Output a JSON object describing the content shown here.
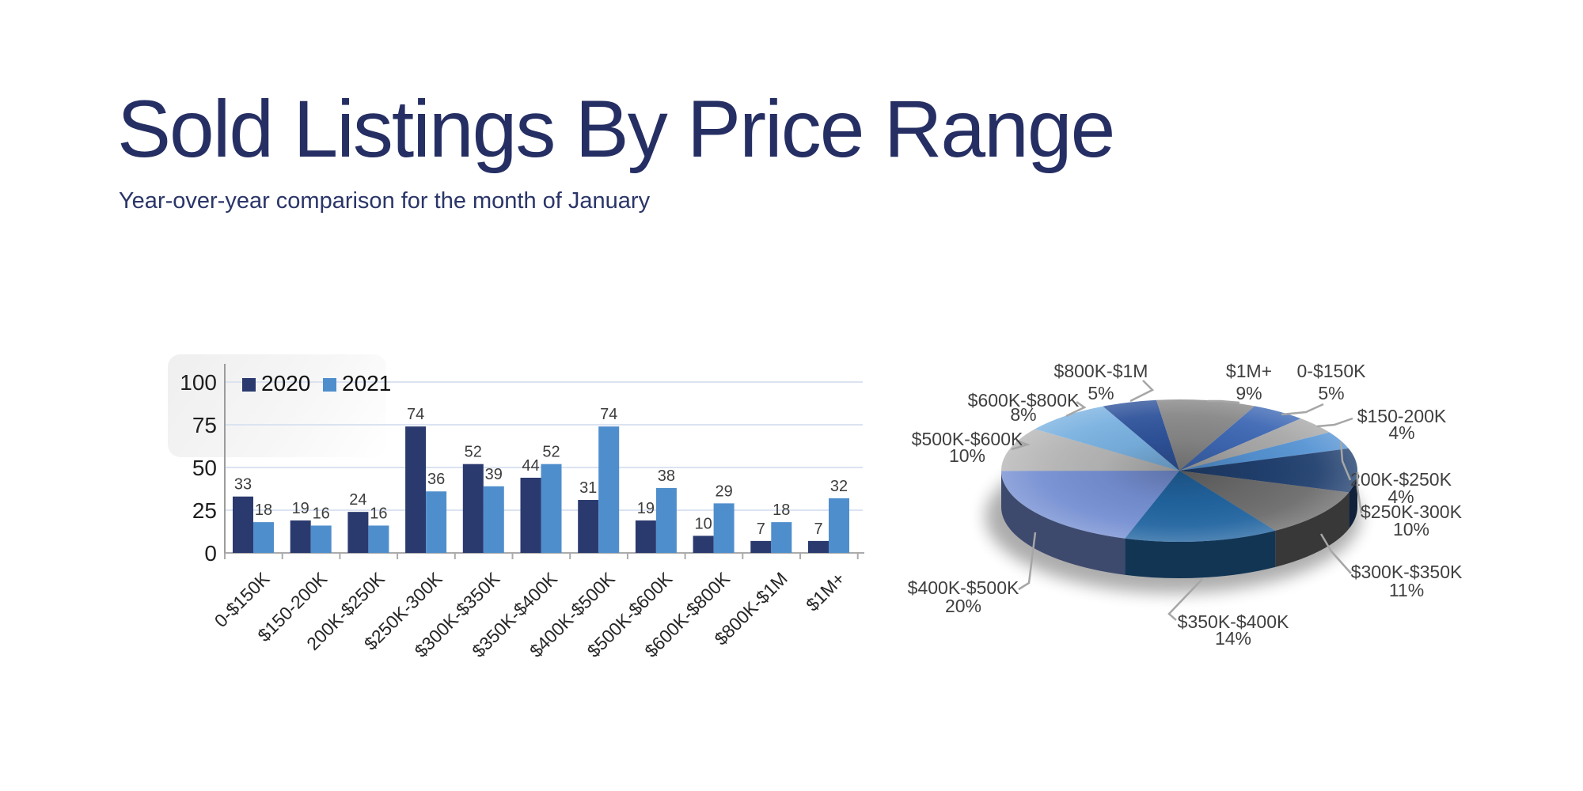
{
  "slide": {
    "title": "Sold Listings By Price Range",
    "subtitle": "Year-over-year comparison for the month of January"
  },
  "chart_data": [
    {
      "type": "bar",
      "title": "",
      "categories": [
        "0-$150K",
        "$150-200K",
        "200K-$250K",
        "$250K-300K",
        "$300K-$350K",
        "$350K-$400K",
        "$400K-$500K",
        "$500K-$600K",
        "$600K-$800K",
        "$800K-$1M",
        "$1M+"
      ],
      "series": [
        {
          "name": "2020",
          "color": "#2b3a6e",
          "values": [
            33,
            19,
            24,
            74,
            52,
            44,
            31,
            19,
            10,
            7,
            7
          ]
        },
        {
          "name": "2021",
          "color": "#4f8ecd",
          "values": [
            18,
            16,
            16,
            36,
            39,
            52,
            74,
            38,
            29,
            18,
            32
          ]
        }
      ],
      "ylim": [
        0,
        100
      ],
      "yticks": [
        0,
        25,
        50,
        75,
        100
      ],
      "grid": true,
      "legend_position": "top-left",
      "value_labels": true
    },
    {
      "type": "pie",
      "style": "3d",
      "start_angle_deg": 25,
      "unit": "percent",
      "slices": [
        {
          "label": "0-$150K",
          "value": 5,
          "color": "#3e68b4"
        },
        {
          "label": "$150-200K",
          "value": 4,
          "color": "#a8a8a8"
        },
        {
          "label": "200K-$250K",
          "value": 4,
          "color": "#5593d3"
        },
        {
          "label": "$250K-300K",
          "value": 10,
          "color": "#21406f"
        },
        {
          "label": "$300K-$350K",
          "value": 11,
          "color": "#6c6c6c"
        },
        {
          "label": "$350K-$400K",
          "value": 14,
          "color": "#2265a1"
        },
        {
          "label": "$400K-$500K",
          "value": 20,
          "color": "#758fd2"
        },
        {
          "label": "$500K-$600K",
          "value": 10,
          "color": "#b6b6b6"
        },
        {
          "label": "$600K-$800K",
          "value": 8,
          "color": "#79b1e0"
        },
        {
          "label": "$800K-$1M",
          "value": 5,
          "color": "#2f539b"
        },
        {
          "label": "$1M+",
          "value": 9,
          "color": "#878787"
        }
      ]
    }
  ],
  "colors": {
    "title_text": "#262f63",
    "grid_line": "#dbe3f1",
    "axis_line": "#ababab",
    "value_label": "#3d3d3d",
    "pie_label": "#3f3f3f",
    "leader_line": "#a6a6a6"
  }
}
